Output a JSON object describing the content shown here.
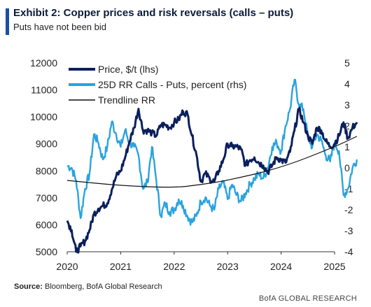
{
  "header": {
    "title": "Exhibit 2: Copper prices and risk reversals (calls – puts)",
    "subtitle": "Puts have not been bid"
  },
  "footer": {
    "source_label": "Source:",
    "source_text": "Bloomberg, BofA Global Research",
    "credit": "BofA GLOBAL RESEARCH"
  },
  "colors": {
    "price": "#0a1f5c",
    "rr": "#2aa3de",
    "trend": "#111111",
    "accent": "#1a4fa3"
  },
  "chart_data": {
    "type": "line",
    "x_ticks": [
      "2020",
      "2021",
      "2022",
      "2023",
      "2024",
      "2025"
    ],
    "y_left": {
      "range": [
        5000,
        12000
      ],
      "ticks": [
        5000,
        6000,
        7000,
        8000,
        9000,
        10000,
        11000,
        12000
      ]
    },
    "y_right": {
      "range": [
        -4,
        5
      ],
      "ticks": [
        -4,
        -3,
        -2,
        -1,
        0,
        1,
        2,
        3,
        4,
        5
      ]
    },
    "grid": false,
    "legend_position": "top-left",
    "series": [
      {
        "name": "Price, $/t (lhs)",
        "axis": "left",
        "points": [
          [
            "2020-01",
            6150
          ],
          [
            "2020-02",
            5800
          ],
          [
            "2020-03",
            5000
          ],
          [
            "2020-04",
            5200
          ],
          [
            "2020-05",
            5400
          ],
          [
            "2020-06",
            5800
          ],
          [
            "2020-07",
            6400
          ],
          [
            "2020-08",
            6600
          ],
          [
            "2020-09",
            6700
          ],
          [
            "2020-10",
            6800
          ],
          [
            "2020-11",
            7300
          ],
          [
            "2020-12",
            7800
          ],
          [
            "2021-01",
            8000
          ],
          [
            "2021-02",
            8500
          ],
          [
            "2021-03",
            9100
          ],
          [
            "2021-04",
            9600
          ],
          [
            "2021-05",
            10300
          ],
          [
            "2021-06",
            9500
          ],
          [
            "2021-07",
            9500
          ],
          [
            "2021-08",
            9400
          ],
          [
            "2021-09",
            9300
          ],
          [
            "2021-10",
            9700
          ],
          [
            "2021-11",
            9700
          ],
          [
            "2021-12",
            9600
          ],
          [
            "2022-01",
            9800
          ],
          [
            "2022-02",
            9900
          ],
          [
            "2022-03",
            10200
          ],
          [
            "2022-04",
            10100
          ],
          [
            "2022-05",
            9300
          ],
          [
            "2022-06",
            8600
          ],
          [
            "2022-07",
            7600
          ],
          [
            "2022-08",
            7900
          ],
          [
            "2022-09",
            7700
          ],
          [
            "2022-10",
            7600
          ],
          [
            "2022-11",
            8000
          ],
          [
            "2022-12",
            8400
          ],
          [
            "2023-01",
            9000
          ],
          [
            "2023-02",
            8900
          ],
          [
            "2023-03",
            8900
          ],
          [
            "2023-04",
            8800
          ],
          [
            "2023-05",
            8200
          ],
          [
            "2023-06",
            8400
          ],
          [
            "2023-07",
            8500
          ],
          [
            "2023-08",
            8300
          ],
          [
            "2023-09",
            8200
          ],
          [
            "2023-10",
            7950
          ],
          [
            "2023-11",
            8200
          ],
          [
            "2023-12",
            8500
          ],
          [
            "2024-01",
            8400
          ],
          [
            "2024-02",
            8300
          ],
          [
            "2024-03",
            8700
          ],
          [
            "2024-04",
            9500
          ],
          [
            "2024-05",
            10300
          ],
          [
            "2024-06",
            9800
          ],
          [
            "2024-07",
            9300
          ],
          [
            "2024-08",
            9000
          ],
          [
            "2024-09",
            9600
          ],
          [
            "2024-10",
            9500
          ],
          [
            "2024-11",
            9100
          ],
          [
            "2024-12",
            8900
          ],
          [
            "2025-01",
            9000
          ],
          [
            "2025-02",
            9300
          ],
          [
            "2025-03",
            9800
          ],
          [
            "2025-04",
            9200
          ],
          [
            "2025-05",
            9600
          ],
          [
            "2025-06",
            9800
          ]
        ]
      },
      {
        "name": "25D RR Calls - Puts, percent (rhs)",
        "axis": "right",
        "points": [
          [
            "2020-01",
            0.1
          ],
          [
            "2020-02",
            0.0
          ],
          [
            "2020-03",
            -0.6
          ],
          [
            "2020-04",
            -2.4
          ],
          [
            "2020-05",
            -1.0
          ],
          [
            "2020-06",
            -0.3
          ],
          [
            "2020-07",
            1.6
          ],
          [
            "2020-08",
            1.2
          ],
          [
            "2020-09",
            0.4
          ],
          [
            "2020-10",
            1.0
          ],
          [
            "2020-11",
            2.2
          ],
          [
            "2020-12",
            1.6
          ],
          [
            "2021-01",
            1.0
          ],
          [
            "2021-02",
            1.8
          ],
          [
            "2021-03",
            1.2
          ],
          [
            "2021-04",
            1.0
          ],
          [
            "2021-05",
            0.6
          ],
          [
            "2021-06",
            -1.0
          ],
          [
            "2021-07",
            -0.7
          ],
          [
            "2021-08",
            1.0
          ],
          [
            "2021-09",
            -0.6
          ],
          [
            "2021-10",
            -2.3
          ],
          [
            "2021-11",
            -1.7
          ],
          [
            "2021-12",
            -2.1
          ],
          [
            "2022-01",
            -2.0
          ],
          [
            "2022-02",
            -1.5
          ],
          [
            "2022-03",
            -1.8
          ],
          [
            "2022-04",
            -2.3
          ],
          [
            "2022-05",
            -2.6
          ],
          [
            "2022-06",
            -2.3
          ],
          [
            "2022-07",
            -1.6
          ],
          [
            "2022-08",
            -1.4
          ],
          [
            "2022-09",
            -1.8
          ],
          [
            "2022-10",
            -2.0
          ],
          [
            "2022-11",
            -1.0
          ],
          [
            "2022-12",
            -0.7
          ],
          [
            "2023-01",
            -1.5
          ],
          [
            "2023-02",
            -0.8
          ],
          [
            "2023-03",
            -1.3
          ],
          [
            "2023-04",
            -1.6
          ],
          [
            "2023-05",
            -1.2
          ],
          [
            "2023-06",
            -0.8
          ],
          [
            "2023-07",
            -0.5
          ],
          [
            "2023-08",
            -0.3
          ],
          [
            "2023-09",
            -0.5
          ],
          [
            "2023-10",
            0.0
          ],
          [
            "2023-11",
            1.0
          ],
          [
            "2023-12",
            1.2
          ],
          [
            "2024-01",
            0.8
          ],
          [
            "2024-02",
            2.0
          ],
          [
            "2024-03",
            2.8
          ],
          [
            "2024-04",
            4.2
          ],
          [
            "2024-05",
            3.0
          ],
          [
            "2024-06",
            2.8
          ],
          [
            "2024-07",
            1.5
          ],
          [
            "2024-08",
            1.0
          ],
          [
            "2024-09",
            1.6
          ],
          [
            "2024-10",
            1.3
          ],
          [
            "2024-11",
            0.6
          ],
          [
            "2024-12",
            0.3
          ],
          [
            "2025-01",
            1.2
          ],
          [
            "2025-02",
            0.8
          ],
          [
            "2025-03",
            -1.3
          ],
          [
            "2025-04",
            -1.0
          ],
          [
            "2025-05",
            0.0
          ],
          [
            "2025-06",
            0.4
          ]
        ]
      },
      {
        "name": "Trendline RR",
        "axis": "right",
        "points": [
          [
            "2020-01",
            -0.6
          ],
          [
            "2021-01",
            -0.85
          ],
          [
            "2022-01",
            -0.95
          ],
          [
            "2022-07",
            -0.8
          ],
          [
            "2023-01",
            -0.6
          ],
          [
            "2024-01",
            0.0
          ],
          [
            "2025-01",
            1.0
          ],
          [
            "2025-06",
            1.5
          ]
        ]
      }
    ]
  }
}
